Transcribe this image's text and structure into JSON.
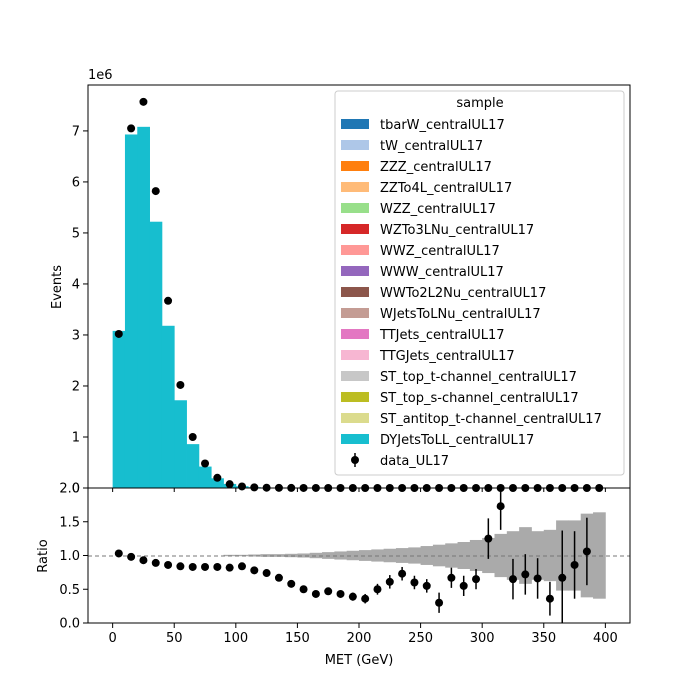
{
  "chart_data": [
    {
      "type": "bar",
      "panel": "main",
      "ylabel": "Events",
      "y_multiplier_label": "1e6",
      "ylim": [
        0,
        7.9
      ],
      "yticks": [
        "0",
        "1",
        "2",
        "3",
        "4",
        "5",
        "6",
        "7"
      ],
      "x_bin_edges": [
        0,
        10,
        20,
        30,
        40,
        50,
        60,
        70,
        80,
        90,
        100,
        110,
        120,
        130,
        140,
        150,
        160,
        170,
        180,
        190,
        200,
        210,
        220,
        230,
        240,
        250,
        260,
        270,
        280,
        290,
        300,
        310,
        320,
        330,
        340,
        350,
        360,
        370,
        380,
        390,
        400
      ],
      "legend_title": "sample",
      "legend_position": "upper right",
      "series": [
        {
          "name": "tbarW_centralUL17",
          "color": "#1f77b4",
          "values": []
        },
        {
          "name": "tW_centralUL17",
          "color": "#aec7e8",
          "values": []
        },
        {
          "name": "ZZZ_centralUL17",
          "color": "#ff7f0e",
          "values": []
        },
        {
          "name": "ZZTo4L_centralUL17",
          "color": "#ffbb78",
          "values": []
        },
        {
          "name": "WZZ_centralUL17",
          "color": "#98df8a",
          "values": []
        },
        {
          "name": "WZTo3LNu_centralUL17",
          "color": "#d62728",
          "values": []
        },
        {
          "name": "WWZ_centralUL17",
          "color": "#ff9896",
          "values": []
        },
        {
          "name": "WWW_centralUL17",
          "color": "#9467bd",
          "values": []
        },
        {
          "name": "WWTo2L2Nu_centralUL17",
          "color": "#8c564b",
          "values": []
        },
        {
          "name": "WJetsToLNu_centralUL17",
          "color": "#c49c94",
          "values": []
        },
        {
          "name": "TTJets_centralUL17",
          "color": "#e377c2",
          "values": []
        },
        {
          "name": "TTGJets_centralUL17",
          "color": "#f7b6d2",
          "values": []
        },
        {
          "name": "ST_top_t-channel_centralUL17",
          "color": "#c7c7c7",
          "values": []
        },
        {
          "name": "ST_top_s-channel_centralUL17",
          "color": "#bcbd22",
          "values": []
        },
        {
          "name": "ST_antitop_t-channel_centralUL17",
          "color": "#dbdb8d",
          "values": []
        },
        {
          "name": "DYJetsToLL_centralUL17",
          "color": "#17becf",
          "values": [
            3.08,
            6.93,
            7.08,
            5.22,
            3.18,
            1.72,
            0.86,
            0.42,
            0.19,
            0.08,
            0.035,
            0.016,
            0.008,
            0.004,
            0.002,
            0.001,
            0.0007,
            0.0005,
            0.0003,
            0.0002,
            0.0001,
            0.0001,
            0.0001,
            0,
            0,
            0,
            0,
            0,
            0,
            0,
            0,
            0,
            0,
            0,
            0,
            0,
            0,
            0,
            0,
            0
          ]
        }
      ],
      "data_series": {
        "name": "data_UL17",
        "x": [
          5,
          15,
          25,
          35,
          45,
          55,
          65,
          75,
          85,
          95,
          105,
          115,
          125,
          135,
          145,
          155,
          165,
          175,
          185,
          195,
          205,
          215,
          225,
          235,
          245,
          255,
          265,
          275,
          285,
          295,
          305,
          315,
          325,
          335,
          345,
          355,
          365,
          375,
          385,
          395
        ],
        "y": [
          3.02,
          7.05,
          7.57,
          5.82,
          3.67,
          2.02,
          1.0,
          0.48,
          0.2,
          0.075,
          0.03,
          0.012,
          0.006,
          0.003,
          0.0015,
          0.0008,
          0.0005,
          0.0003,
          0.0002,
          0.0001,
          0.0001,
          0,
          0,
          0,
          0,
          0,
          0,
          0,
          0,
          0,
          0,
          0,
          0,
          0,
          0,
          0,
          0,
          0,
          0,
          0
        ]
      }
    },
    {
      "type": "scatter",
      "panel": "ratio",
      "xlabel": "MET (GeV)",
      "ylabel": "Ratio",
      "ylim": [
        0,
        2.0
      ],
      "xlim": [
        -20,
        420
      ],
      "yticks": [
        "0.0",
        "0.5",
        "1.0",
        "1.5",
        "2.0"
      ],
      "xticks": [
        "0",
        "50",
        "100",
        "150",
        "200",
        "250",
        "300",
        "350",
        "400"
      ],
      "reference_line": 1.0,
      "x": [
        5,
        15,
        25,
        35,
        45,
        55,
        65,
        75,
        85,
        95,
        105,
        115,
        125,
        135,
        145,
        155,
        165,
        175,
        185,
        195,
        205,
        215,
        225,
        235,
        245,
        255,
        265,
        275,
        285,
        295,
        305,
        315,
        325,
        335,
        345,
        355,
        365,
        375,
        385
      ],
      "y": [
        1.03,
        0.98,
        0.93,
        0.89,
        0.86,
        0.84,
        0.83,
        0.83,
        0.83,
        0.82,
        0.84,
        0.78,
        0.74,
        0.67,
        0.58,
        0.5,
        0.43,
        0.47,
        0.43,
        0.39,
        0.36,
        0.5,
        0.61,
        0.73,
        0.6,
        0.55,
        0.3,
        0.67,
        0.55,
        0.65,
        1.25,
        1.73,
        0.65,
        0.72,
        0.66,
        0.36,
        0.67,
        0.86,
        1.06
      ],
      "yerr": [
        0.005,
        0.005,
        0.005,
        0.005,
        0.005,
        0.005,
        0.01,
        0.01,
        0.01,
        0.01,
        0.02,
        0.03,
        0.03,
        0.04,
        0.04,
        0.04,
        0.04,
        0.04,
        0.05,
        0.06,
        0.07,
        0.08,
        0.1,
        0.1,
        0.1,
        0.1,
        0.15,
        0.15,
        0.15,
        0.15,
        0.3,
        0.35,
        0.3,
        0.3,
        0.3,
        0.25,
        0.7,
        0.5,
        0.5
      ],
      "uncertainty_band": {
        "color": "#aaaaaa",
        "x_bin_edges": [
          90,
          100,
          110,
          120,
          130,
          140,
          150,
          160,
          170,
          180,
          190,
          200,
          210,
          220,
          230,
          240,
          250,
          260,
          270,
          280,
          290,
          300,
          310,
          320,
          330,
          340,
          350,
          360,
          370,
          380,
          390,
          400
        ],
        "half_width": [
          0.01,
          0.01,
          0.015,
          0.02,
          0.02,
          0.025,
          0.03,
          0.04,
          0.05,
          0.06,
          0.07,
          0.08,
          0.09,
          0.1,
          0.11,
          0.12,
          0.14,
          0.16,
          0.18,
          0.2,
          0.23,
          0.26,
          0.32,
          0.36,
          0.42,
          0.36,
          0.38,
          0.52,
          0.52,
          0.62,
          0.64
        ]
      }
    }
  ]
}
